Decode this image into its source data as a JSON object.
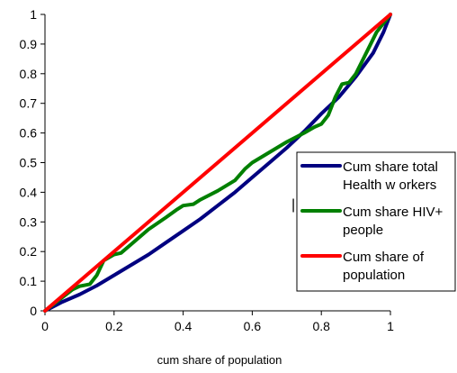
{
  "chart_data": {
    "type": "line",
    "xlabel": "cum share of population",
    "ylabel": "",
    "xlim": [
      0,
      1
    ],
    "ylim": [
      0,
      1
    ],
    "x_ticks": [
      "0",
      "0.2",
      "0.4",
      "0.6",
      "0.8",
      "1"
    ],
    "y_ticks": [
      "0",
      "0.1",
      "0.2",
      "0.3",
      "0.4",
      "0.5",
      "0.6",
      "0.7",
      "0.8",
      "0.9",
      "1"
    ],
    "grid": false,
    "legend_position": "right",
    "series": [
      {
        "name": "Cum share total Health w orkers",
        "legend_lines": [
          "Cum share total",
          "Health w orkers"
        ],
        "color": "#000080",
        "points": [
          [
            0,
            0
          ],
          [
            0.02,
            0.012
          ],
          [
            0.05,
            0.03
          ],
          [
            0.1,
            0.055
          ],
          [
            0.15,
            0.085
          ],
          [
            0.2,
            0.12
          ],
          [
            0.25,
            0.155
          ],
          [
            0.3,
            0.19
          ],
          [
            0.35,
            0.23
          ],
          [
            0.4,
            0.27
          ],
          [
            0.45,
            0.31
          ],
          [
            0.5,
            0.355
          ],
          [
            0.55,
            0.4
          ],
          [
            0.6,
            0.45
          ],
          [
            0.65,
            0.5
          ],
          [
            0.7,
            0.55
          ],
          [
            0.75,
            0.605
          ],
          [
            0.8,
            0.665
          ],
          [
            0.85,
            0.72
          ],
          [
            0.9,
            0.79
          ],
          [
            0.95,
            0.87
          ],
          [
            0.98,
            0.94
          ],
          [
            1,
            1
          ]
        ]
      },
      {
        "name": "Cum share HIV+ people",
        "legend_lines": [
          "Cum share HIV+",
          "people"
        ],
        "color": "#008000",
        "points": [
          [
            0,
            0
          ],
          [
            0.05,
            0.045
          ],
          [
            0.08,
            0.072
          ],
          [
            0.1,
            0.083
          ],
          [
            0.13,
            0.09
          ],
          [
            0.15,
            0.12
          ],
          [
            0.17,
            0.17
          ],
          [
            0.2,
            0.19
          ],
          [
            0.22,
            0.195
          ],
          [
            0.25,
            0.225
          ],
          [
            0.3,
            0.275
          ],
          [
            0.35,
            0.315
          ],
          [
            0.38,
            0.34
          ],
          [
            0.4,
            0.355
          ],
          [
            0.43,
            0.36
          ],
          [
            0.45,
            0.375
          ],
          [
            0.5,
            0.405
          ],
          [
            0.55,
            0.44
          ],
          [
            0.58,
            0.48
          ],
          [
            0.6,
            0.5
          ],
          [
            0.65,
            0.535
          ],
          [
            0.7,
            0.57
          ],
          [
            0.75,
            0.6
          ],
          [
            0.78,
            0.62
          ],
          [
            0.8,
            0.63
          ],
          [
            0.82,
            0.66
          ],
          [
            0.84,
            0.72
          ],
          [
            0.86,
            0.765
          ],
          [
            0.88,
            0.77
          ],
          [
            0.9,
            0.8
          ],
          [
            0.93,
            0.87
          ],
          [
            0.96,
            0.94
          ],
          [
            1,
            1
          ]
        ]
      },
      {
        "name": "Cum share of population",
        "legend_lines": [
          "Cum share of",
          "population"
        ],
        "color": "#ff0000",
        "points": [
          [
            0,
            0
          ],
          [
            1,
            1
          ]
        ]
      }
    ],
    "annotations": [
      "|"
    ]
  }
}
